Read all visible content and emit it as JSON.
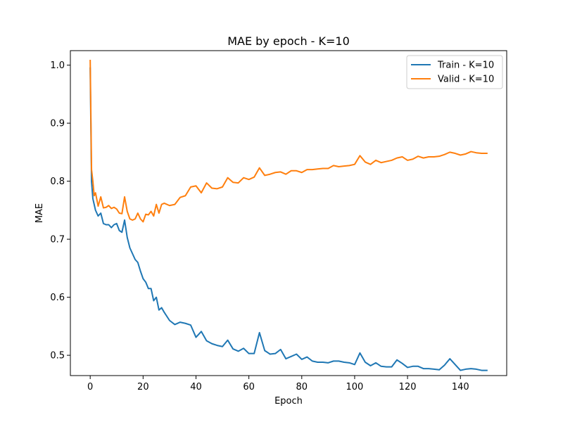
{
  "chart_data": {
    "type": "line",
    "title": "MAE by epoch - K=10",
    "xlabel": "Epoch",
    "ylabel": "MAE",
    "xlim": [
      -7.5,
      157.5
    ],
    "ylim": [
      0.465,
      1.025
    ],
    "xticks": [
      0,
      20,
      40,
      60,
      80,
      100,
      120,
      140
    ],
    "yticks": [
      0.5,
      0.6,
      0.7,
      0.8,
      0.9,
      1.0
    ],
    "ytick_labels": [
      "0.5",
      "0.6",
      "0.7",
      "0.8",
      "0.9",
      "1.0"
    ],
    "grid": false,
    "legend_position": "top-right",
    "series": [
      {
        "name": "Train - K=10",
        "color": "#1f77b4",
        "x": [
          0,
          0.5,
          1,
          1.5,
          2,
          3,
          4,
          5,
          6,
          7,
          8,
          9,
          10,
          11,
          12,
          13,
          14,
          15,
          16,
          17,
          18,
          19,
          20,
          21,
          22,
          23,
          24,
          25,
          26,
          27,
          28,
          30,
          32,
          34,
          36,
          38,
          40,
          42,
          44,
          46,
          48,
          50,
          52,
          54,
          56,
          58,
          60,
          62,
          64,
          66,
          68,
          70,
          72,
          74,
          76,
          78,
          80,
          82,
          84,
          86,
          88,
          90,
          92,
          94,
          96,
          98,
          100,
          102,
          104,
          106,
          108,
          110,
          112,
          114,
          116,
          118,
          120,
          122,
          124,
          126,
          128,
          130,
          132,
          134,
          136,
          138,
          140,
          142,
          144,
          146,
          148,
          150
        ],
        "values": [
          0.995,
          0.8,
          0.77,
          0.76,
          0.75,
          0.74,
          0.745,
          0.727,
          0.725,
          0.725,
          0.72,
          0.725,
          0.727,
          0.715,
          0.712,
          0.733,
          0.703,
          0.685,
          0.675,
          0.665,
          0.66,
          0.645,
          0.632,
          0.626,
          0.615,
          0.615,
          0.594,
          0.6,
          0.578,
          0.582,
          0.574,
          0.56,
          0.553,
          0.557,
          0.555,
          0.552,
          0.531,
          0.541,
          0.525,
          0.52,
          0.517,
          0.515,
          0.526,
          0.511,
          0.507,
          0.512,
          0.503,
          0.503,
          0.539,
          0.508,
          0.502,
          0.503,
          0.51,
          0.494,
          0.498,
          0.502,
          0.493,
          0.497,
          0.49,
          0.488,
          0.488,
          0.487,
          0.49,
          0.49,
          0.488,
          0.487,
          0.484,
          0.504,
          0.488,
          0.482,
          0.487,
          0.481,
          0.48,
          0.48,
          0.492,
          0.486,
          0.479,
          0.481,
          0.481,
          0.477,
          0.477,
          0.476,
          0.475,
          0.483,
          0.494,
          0.484,
          0.474,
          0.476,
          0.477,
          0.476,
          0.474,
          0.474
        ]
      },
      {
        "name": "Valid - K=10",
        "color": "#ff7f0e",
        "x": [
          0,
          0.5,
          1,
          1.5,
          2,
          3,
          4,
          5,
          6,
          7,
          8,
          9,
          10,
          11,
          12,
          13,
          14,
          15,
          16,
          17,
          18,
          19,
          20,
          21,
          22,
          23,
          24,
          25,
          26,
          27,
          28,
          30,
          32,
          34,
          36,
          38,
          40,
          42,
          44,
          46,
          48,
          50,
          52,
          54,
          56,
          58,
          60,
          62,
          64,
          66,
          68,
          70,
          72,
          74,
          76,
          78,
          80,
          82,
          84,
          86,
          88,
          90,
          92,
          94,
          96,
          98,
          100,
          102,
          104,
          106,
          108,
          110,
          112,
          114,
          116,
          118,
          120,
          122,
          124,
          126,
          128,
          130,
          132,
          134,
          136,
          138,
          140,
          142,
          144,
          146,
          148,
          150
        ],
        "values": [
          1.008,
          0.82,
          0.8,
          0.775,
          0.78,
          0.757,
          0.773,
          0.754,
          0.755,
          0.758,
          0.753,
          0.755,
          0.752,
          0.745,
          0.744,
          0.773,
          0.748,
          0.735,
          0.733,
          0.735,
          0.745,
          0.735,
          0.73,
          0.743,
          0.742,
          0.748,
          0.74,
          0.76,
          0.745,
          0.76,
          0.762,
          0.758,
          0.76,
          0.772,
          0.775,
          0.79,
          0.792,
          0.78,
          0.797,
          0.788,
          0.787,
          0.79,
          0.806,
          0.798,
          0.797,
          0.806,
          0.803,
          0.807,
          0.823,
          0.81,
          0.812,
          0.815,
          0.816,
          0.812,
          0.818,
          0.818,
          0.815,
          0.82,
          0.82,
          0.821,
          0.822,
          0.822,
          0.827,
          0.825,
          0.826,
          0.827,
          0.829,
          0.844,
          0.833,
          0.829,
          0.836,
          0.832,
          0.834,
          0.836,
          0.84,
          0.842,
          0.836,
          0.838,
          0.843,
          0.84,
          0.842,
          0.842,
          0.843,
          0.846,
          0.85,
          0.848,
          0.845,
          0.847,
          0.851,
          0.849,
          0.848,
          0.848
        ]
      }
    ]
  }
}
